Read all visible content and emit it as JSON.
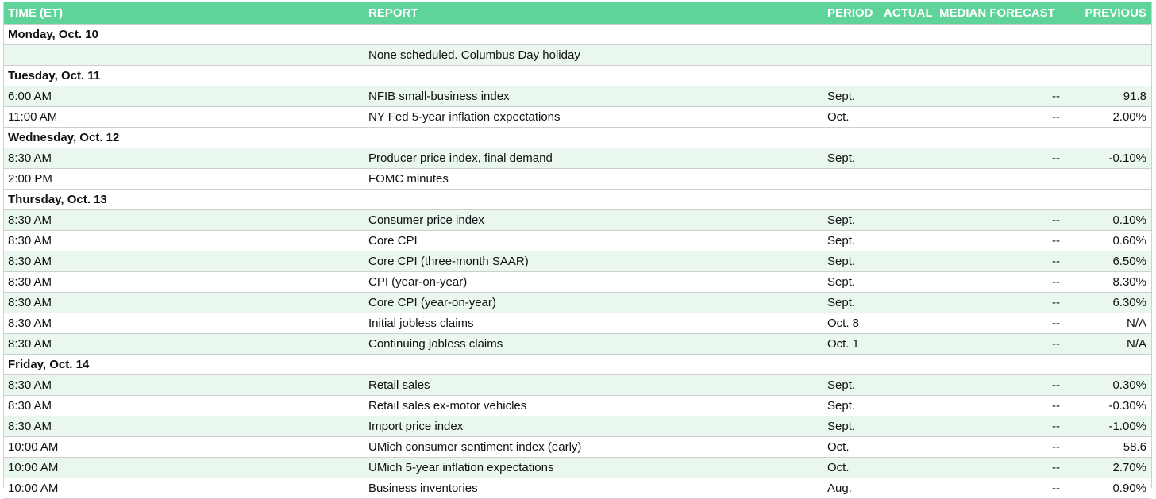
{
  "header": {
    "time": "TIME (ET)",
    "report": "REPORT",
    "period": "PERIOD",
    "actual": "ACTUAL",
    "median": "MEDIAN FORECAST",
    "previous": "PREVIOUS"
  },
  "colors": {
    "header_bg": "#5fd49a",
    "alt_row_bg": "#e9f7ef",
    "grid_line": "#cfcfcf"
  },
  "days": [
    {
      "label": "Monday, Oct. 10",
      "rows": [
        {
          "time": "",
          "report": "None scheduled. Columbus Day holiday",
          "period": "",
          "actual": "",
          "median": "",
          "previous": ""
        }
      ]
    },
    {
      "label": "Tuesday, Oct. 11",
      "rows": [
        {
          "time": "6:00 AM",
          "report": "NFIB small-business index",
          "period": "Sept.",
          "actual": "",
          "median": "--",
          "previous": "91.8"
        },
        {
          "time": "11:00 AM",
          "report": "NY Fed 5-year inflation expectations",
          "period": "Oct.",
          "actual": "",
          "median": "--",
          "previous": "2.00%"
        }
      ]
    },
    {
      "label": "Wednesday, Oct. 12",
      "rows": [
        {
          "time": "8:30 AM",
          "report": "Producer price index, final demand",
          "period": "Sept.",
          "actual": "",
          "median": "--",
          "previous": "-0.10%"
        },
        {
          "time": "2:00 PM",
          "report": "FOMC minutes",
          "period": "",
          "actual": "",
          "median": "",
          "previous": ""
        }
      ]
    },
    {
      "label": "Thursday, Oct. 13",
      "rows": [
        {
          "time": "8:30 AM",
          "report": "Consumer price index",
          "period": "Sept.",
          "actual": "",
          "median": "--",
          "previous": "0.10%"
        },
        {
          "time": "8:30 AM",
          "report": "Core CPI",
          "period": "Sept.",
          "actual": "",
          "median": "--",
          "previous": "0.60%"
        },
        {
          "time": "8:30 AM",
          "report": "Core CPI (three-month SAAR)",
          "period": "Sept.",
          "actual": "",
          "median": "--",
          "previous": "6.50%"
        },
        {
          "time": "8:30 AM",
          "report": "CPI (year-on-year)",
          "period": "Sept.",
          "actual": "",
          "median": "--",
          "previous": "8.30%"
        },
        {
          "time": "8:30 AM",
          "report": "Core CPI (year-on-year)",
          "period": "Sept.",
          "actual": "",
          "median": "--",
          "previous": "6.30%"
        },
        {
          "time": "8:30 AM",
          "report": "Initial jobless claims",
          "period": "Oct. 8",
          "actual": "",
          "median": "--",
          "previous": "N/A"
        },
        {
          "time": "8:30 AM",
          "report": "Continuing jobless claims",
          "period": "Oct. 1",
          "actual": "",
          "median": "--",
          "previous": "N/A"
        }
      ]
    },
    {
      "label": "Friday, Oct. 14",
      "rows": [
        {
          "time": "8:30 AM",
          "report": "Retail sales",
          "period": "Sept.",
          "actual": "",
          "median": "--",
          "previous": "0.30%"
        },
        {
          "time": "8:30 AM",
          "report": "Retail sales ex-motor vehicles",
          "period": "Sept.",
          "actual": "",
          "median": "--",
          "previous": "-0.30%"
        },
        {
          "time": "8:30 AM",
          "report": "Import price index",
          "period": "Sept.",
          "actual": "",
          "median": "--",
          "previous": "-1.00%"
        },
        {
          "time": "10:00 AM",
          "report": "UMich consumer sentiment index (early)",
          "period": "Oct.",
          "actual": "",
          "median": "--",
          "previous": "58.6"
        },
        {
          "time": "10:00 AM",
          "report": "UMich 5-year inflation expectations",
          "period": "Oct.",
          "actual": "",
          "median": "--",
          "previous": "2.70%"
        },
        {
          "time": "10:00 AM",
          "report": "Business inventories",
          "period": "Aug.",
          "actual": "",
          "median": "--",
          "previous": "0.90%"
        }
      ]
    }
  ]
}
